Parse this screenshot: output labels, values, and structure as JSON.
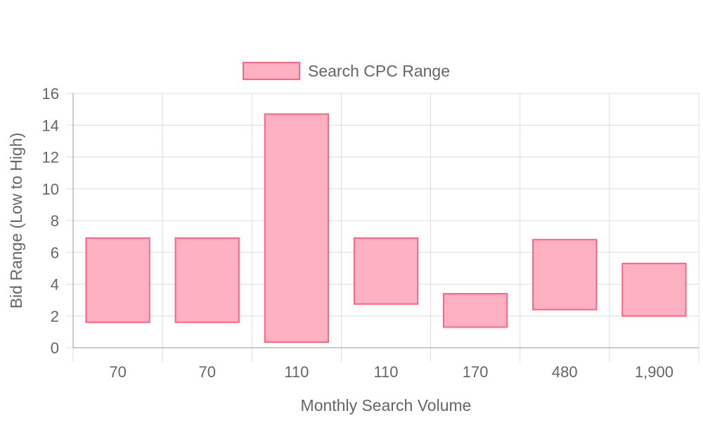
{
  "chart_data": {
    "type": "bar",
    "subtype": "floating-range",
    "categories": [
      "70",
      "70",
      "110",
      "110",
      "170",
      "480",
      "1,900"
    ],
    "series": [
      {
        "name": "Search CPC Range",
        "ranges": [
          [
            1.6,
            6.9
          ],
          [
            1.6,
            6.9
          ],
          [
            0.35,
            14.7
          ],
          [
            2.75,
            6.9
          ],
          [
            1.3,
            3.4
          ],
          [
            2.4,
            6.8
          ],
          [
            2.0,
            5.3
          ]
        ],
        "fill": "#ffb1c1",
        "stroke": "#ff6384"
      }
    ],
    "xlabel": "Monthly Search Volume",
    "ylabel": "Bid Range (Low to High)",
    "ylim": [
      0,
      16
    ],
    "yticks": [
      "0",
      "2",
      "4",
      "6",
      "8",
      "10",
      "12",
      "14",
      "16"
    ],
    "grid": true,
    "legend": "top-center"
  }
}
